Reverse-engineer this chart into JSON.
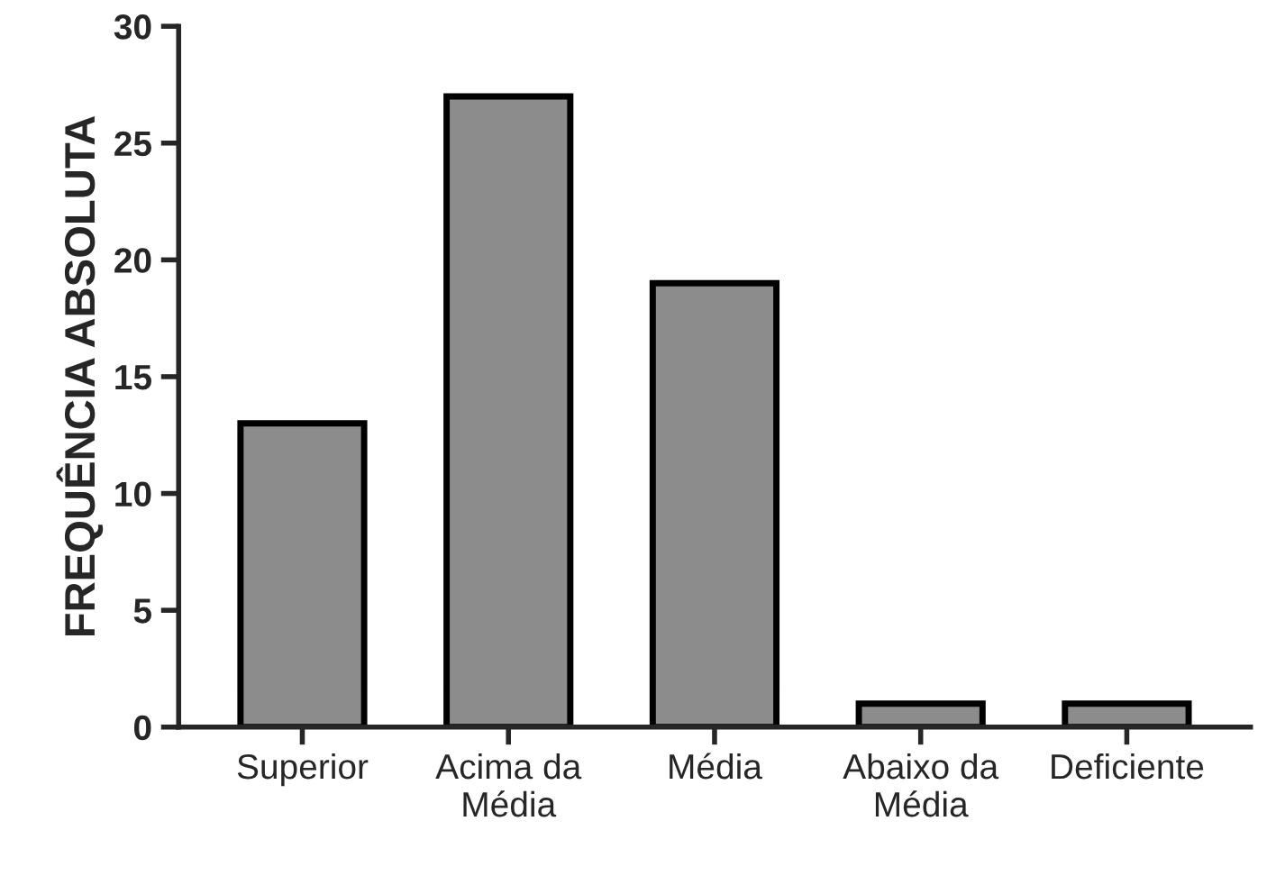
{
  "chart_data": {
    "type": "bar",
    "ylabel": "FREQUÊNCIA ABSOLUTA",
    "categories": [
      "Superior",
      "Acima da\nMédia",
      "Média",
      "Abaixo da\nMédia",
      "Deficiente"
    ],
    "values": [
      13,
      27,
      19,
      1,
      1
    ],
    "color": "#8c8c8c",
    "ylim": [
      0,
      30
    ],
    "yticks": [
      0,
      5,
      10,
      15,
      20,
      25,
      30
    ],
    "grid": false,
    "legend": false
  }
}
